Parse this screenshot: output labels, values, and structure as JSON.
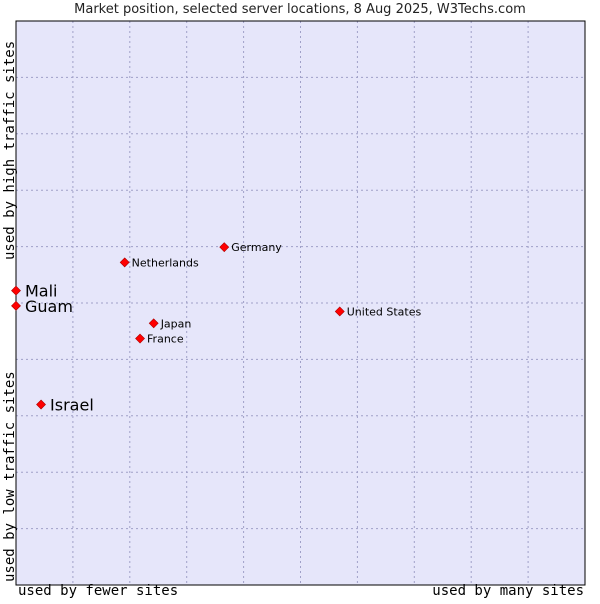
{
  "chart_data": {
    "type": "scatter",
    "title": "Market position, selected server locations, 8 Aug 2025, W3Techs.com",
    "xlabel_low": "used by fewer sites",
    "xlabel_high": "used by many sites",
    "ylabel_low": "used by low traffic sites",
    "ylabel_high": "used by high traffic sites",
    "xlim": [
      0,
      100
    ],
    "ylim": [
      0,
      100
    ],
    "grid": true,
    "points": [
      {
        "label": "Germany",
        "x": 36.6,
        "y": 59.9,
        "size": "small"
      },
      {
        "label": "Netherlands",
        "x": 19.1,
        "y": 57.2,
        "size": "small"
      },
      {
        "label": "Mali",
        "x": 0,
        "y": 52.2,
        "size": "large"
      },
      {
        "label": "Guam",
        "x": 0,
        "y": 49.5,
        "size": "large"
      },
      {
        "label": "United States",
        "x": 56.9,
        "y": 48.5,
        "size": "small"
      },
      {
        "label": "Japan",
        "x": 24.2,
        "y": 46.4,
        "size": "small"
      },
      {
        "label": "France",
        "x": 21.8,
        "y": 43.7,
        "size": "small"
      },
      {
        "label": "Israel",
        "x": 4.4,
        "y": 32.0,
        "size": "large"
      }
    ]
  },
  "colors": {
    "plot_bg": "#e6e6fa",
    "grid": "#a0a0c8",
    "marker": "#ff0000",
    "marker_edge": "#aa0000",
    "border": "#000000"
  }
}
